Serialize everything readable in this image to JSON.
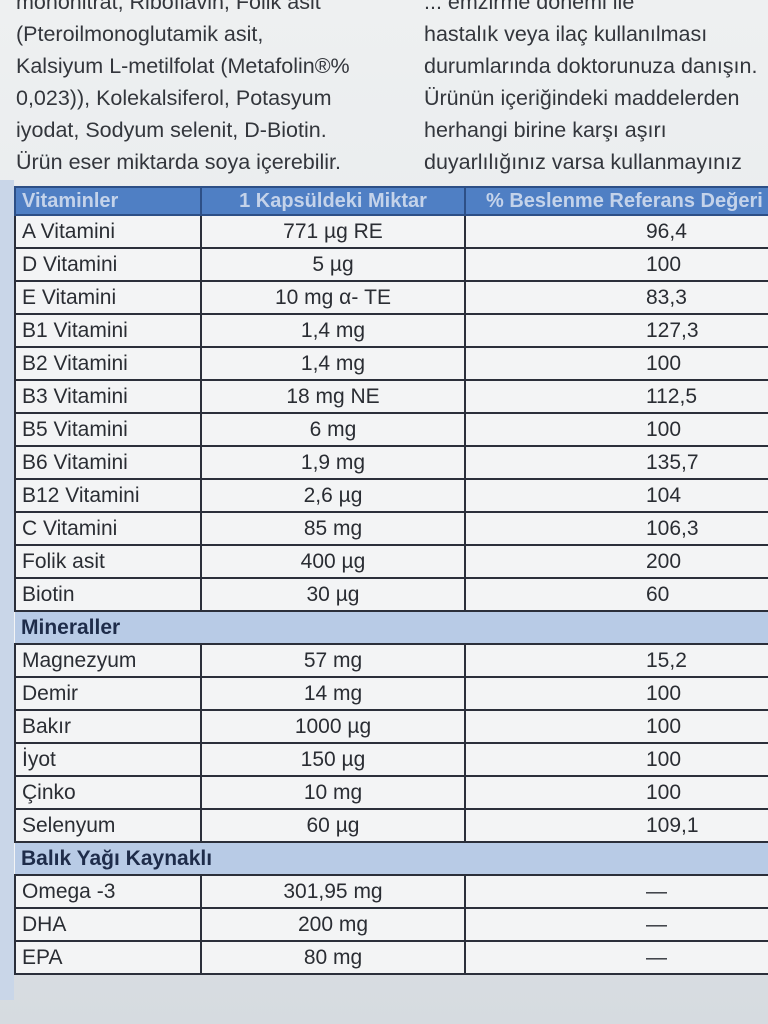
{
  "intro_left": [
    "mononitrat, Riboflavin, Folik asit",
    "(Pteroilmonoglutamik asit,",
    "Kalsiyum L-metilfolat (Metafolin®%",
    "0,023)), Kolekalsiferol, Potasyum",
    "iyodat, Sodyum selenit, D-Biotin.",
    "Ürün eser miktarda soya içerebilir."
  ],
  "intro_right": [
    "... emzirme dönemi ile",
    "hastalık veya ilaç kullanılması",
    "durumlarında doktorunuza danışın.",
    "Ürünün içeriğindeki maddelerden",
    "herhangi birine karşı aşırı",
    "duyarlılığınız varsa kullanmayınız"
  ],
  "table": {
    "headers": [
      "Vitaminler",
      "1 Kapsüldeki Miktar",
      "% Beslenme Referans Değeri"
    ],
    "vitamins": [
      [
        "A Vitamini",
        "771 µg RE",
        "96,4"
      ],
      [
        "D Vitamini",
        "5 µg",
        "100"
      ],
      [
        "E Vitamini",
        "10 mg α- TE",
        "83,3"
      ],
      [
        "B1 Vitamini",
        "1,4 mg",
        "127,3"
      ],
      [
        "B2 Vitamini",
        "1,4 mg",
        "100"
      ],
      [
        "B3 Vitamini",
        "18 mg NE",
        "112,5"
      ],
      [
        "B5 Vitamini",
        "6 mg",
        "100"
      ],
      [
        "B6 Vitamini",
        "1,9 mg",
        "135,7"
      ],
      [
        "B12 Vitamini",
        "2,6 µg",
        "104"
      ],
      [
        "C Vitamini",
        "85 mg",
        "106,3"
      ],
      [
        "Folik asit",
        "400 µg",
        "200"
      ],
      [
        "Biotin",
        "30 µg",
        "60"
      ]
    ],
    "minerals_label": "Mineraller",
    "minerals": [
      [
        "Magnezyum",
        "57 mg",
        "15,2"
      ],
      [
        "Demir",
        "14 mg",
        "100"
      ],
      [
        "Bakır",
        "1000 µg",
        "100"
      ],
      [
        "İyot",
        "150 µg",
        "100"
      ],
      [
        "Çinko",
        "10 mg",
        "100"
      ],
      [
        "Selenyum",
        "60 µg",
        "109,1"
      ]
    ],
    "fish_label": "Balık Yağı Kaynaklı",
    "fish": [
      [
        "Omega -3",
        "301,95 mg",
        "—"
      ],
      [
        "DHA",
        "200 mg",
        "—"
      ],
      [
        "EPA",
        "80 mg",
        "—"
      ]
    ]
  }
}
